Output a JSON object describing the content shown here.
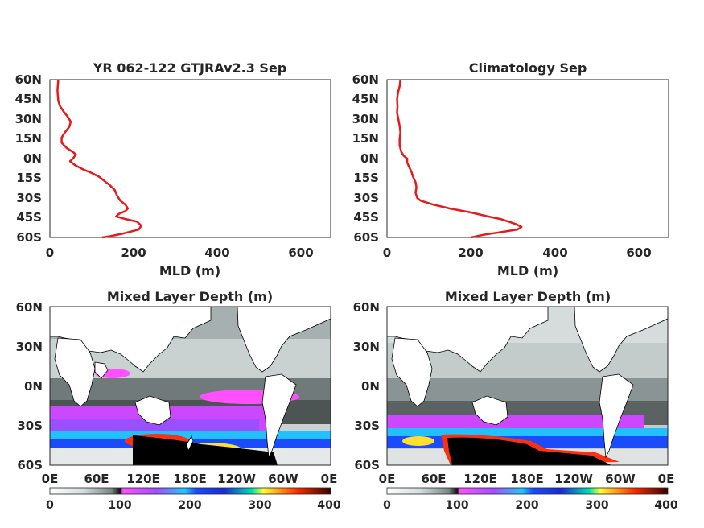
{
  "chart_data": [
    {
      "type": "line",
      "title": "YR 062-122 GTJRAv2.3 Sep",
      "xlabel": "MLD (m)",
      "ylabel": "",
      "xlim": [
        0,
        670
      ],
      "ylim": [
        -60,
        60
      ],
      "xticks": [
        "0",
        "200",
        "400",
        "600"
      ],
      "yticks": [
        "60N",
        "45N",
        "30N",
        "15N",
        "0N",
        "15S",
        "30S",
        "45S",
        "60S"
      ],
      "line_color": "#e8191a",
      "series": [
        {
          "x": [
            20,
            19,
            18,
            19,
            20,
            24,
            32,
            42,
            50,
            46,
            36,
            28,
            28,
            40,
            55,
            62,
            55,
            48,
            60,
            78,
            100,
            118,
            130,
            142,
            155,
            160,
            168,
            180,
            186,
            180,
            165,
            158,
            180,
            208,
            218,
            212,
            175,
            145,
            125
          ],
          "y": [
            60,
            56,
            52,
            48,
            44,
            40,
            36,
            32,
            28,
            24,
            20,
            16,
            12,
            8,
            5,
            3,
            0,
            -2,
            -5,
            -8,
            -11,
            -14,
            -17,
            -20,
            -24,
            -28,
            -32,
            -35,
            -38,
            -40,
            -42,
            -44,
            -46,
            -48,
            -51,
            -54,
            -57,
            -59,
            -60
          ]
        }
      ]
    },
    {
      "type": "line",
      "title": "Climatology Sep",
      "xlabel": "MLD (m)",
      "ylabel": "",
      "xlim": [
        0,
        670
      ],
      "ylim": [
        -60,
        60
      ],
      "xticks": [
        "0",
        "200",
        "400",
        "600"
      ],
      "yticks": [
        "60N",
        "45N",
        "30N",
        "15N",
        "0N",
        "15S",
        "30S",
        "45S",
        "60S"
      ],
      "line_color": "#e8191a",
      "series": [
        {
          "x": [
            32,
            30,
            26,
            24,
            25,
            24,
            27,
            30,
            32,
            30,
            30,
            34,
            40,
            48,
            48,
            52,
            58,
            62,
            68,
            70,
            68,
            72,
            80,
            110,
            150,
            200,
            240,
            270,
            290,
            308,
            320,
            310,
            270,
            230,
            200
          ],
          "y": [
            60,
            55,
            50,
            45,
            40,
            35,
            30,
            25,
            20,
            15,
            10,
            5,
            2,
            0,
            -3,
            -6,
            -10,
            -14,
            -18,
            -22,
            -26,
            -30,
            -32,
            -35,
            -38,
            -41,
            -44,
            -46,
            -48,
            -50,
            -52,
            -54,
            -56,
            -58,
            -60
          ]
        }
      ]
    },
    {
      "type": "heatmap",
      "title": "Mixed Layer Depth (m)",
      "xticks": [
        "0E",
        "60E",
        "120E",
        "180E",
        "120W",
        "60W",
        "0E"
      ],
      "yticks": [
        "60N",
        "30N",
        "0N",
        "30S",
        "60S"
      ],
      "colorbar_ticks": [
        "0",
        "100",
        "200",
        "300",
        "400"
      ],
      "colorbar_range": [
        0,
        400
      ]
    },
    {
      "type": "heatmap",
      "title": "Mixed Layer Depth (m)",
      "xticks": [
        "0E",
        "60E",
        "120E",
        "180E",
        "120W",
        "60W",
        "0E"
      ],
      "yticks": [
        "60N",
        "30N",
        "0N",
        "30S",
        "60S"
      ],
      "colorbar_ticks": [
        "0",
        "100",
        "200",
        "300",
        "400"
      ],
      "colorbar_range": [
        0,
        400
      ]
    }
  ]
}
